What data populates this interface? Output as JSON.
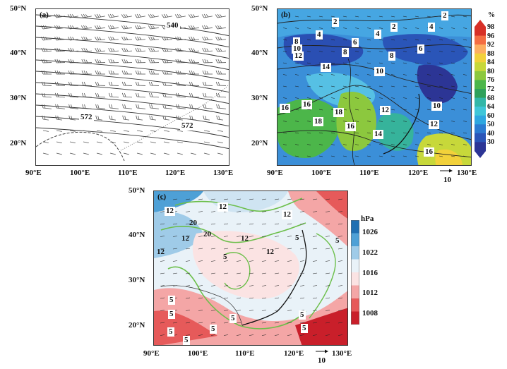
{
  "panels": {
    "a": {
      "label": "(a)",
      "contours": [
        "540",
        "572",
        "572"
      ],
      "y_ticks": [
        "50°N",
        "40°N",
        "30°N",
        "20°N"
      ],
      "x_ticks": [
        "90°E",
        "100°E",
        "110°E",
        "120°E",
        "130°E"
      ]
    },
    "b": {
      "label": "(b)",
      "contours": [
        "2",
        "2",
        "2",
        "4",
        "4",
        "4",
        "6",
        "6",
        "8",
        "8",
        "8",
        "10",
        "10",
        "10",
        "12",
        "12",
        "12",
        "14",
        "14",
        "16",
        "16",
        "16",
        "18",
        "18",
        "16"
      ],
      "y_ticks": [
        "50°N",
        "40°N",
        "30°N",
        "20°N"
      ],
      "x_ticks": [
        "90°E",
        "100°E",
        "110°E",
        "120°E",
        "130°E"
      ],
      "colorbar": {
        "unit": "%",
        "levels": [
          "98",
          "96",
          "92",
          "88",
          "84",
          "80",
          "76",
          "72",
          "68",
          "64",
          "60",
          "50",
          "40",
          "30"
        ],
        "colors": [
          "#d73027",
          "#f46d43",
          "#fdae61",
          "#f2d13a",
          "#c7d83a",
          "#8cc83e",
          "#4cb64a",
          "#2fa15b",
          "#32b7a8",
          "#3fc6d8",
          "#2ea7e0",
          "#2b7bd1",
          "#2a55b8",
          "#2c3595"
        ]
      },
      "reference_vector": "10"
    },
    "c": {
      "label": "(c)",
      "contours": [
        "12",
        "12",
        "12",
        "20",
        "20",
        "12",
        "12",
        "12",
        "12",
        "5",
        "5",
        "5",
        "5",
        "5",
        "5",
        "5",
        "5",
        "5",
        "5",
        "5"
      ],
      "y_ticks": [
        "50°N",
        "40°N",
        "30°N",
        "20°N"
      ],
      "x_ticks": [
        "90°E",
        "100°E",
        "110°E",
        "120°E",
        "130°E"
      ],
      "colorbar": {
        "unit": "hPa",
        "levels": [
          "1026",
          "1022",
          "1016",
          "1012",
          "1008"
        ],
        "colors": [
          "#1f6fb2",
          "#4ea0d6",
          "#9fcbe8",
          "#e9f2f8",
          "#fbe3e3",
          "#f4a6a6",
          "#e65a5a",
          "#c91f2a"
        ]
      },
      "reference_vector": "10"
    }
  }
}
